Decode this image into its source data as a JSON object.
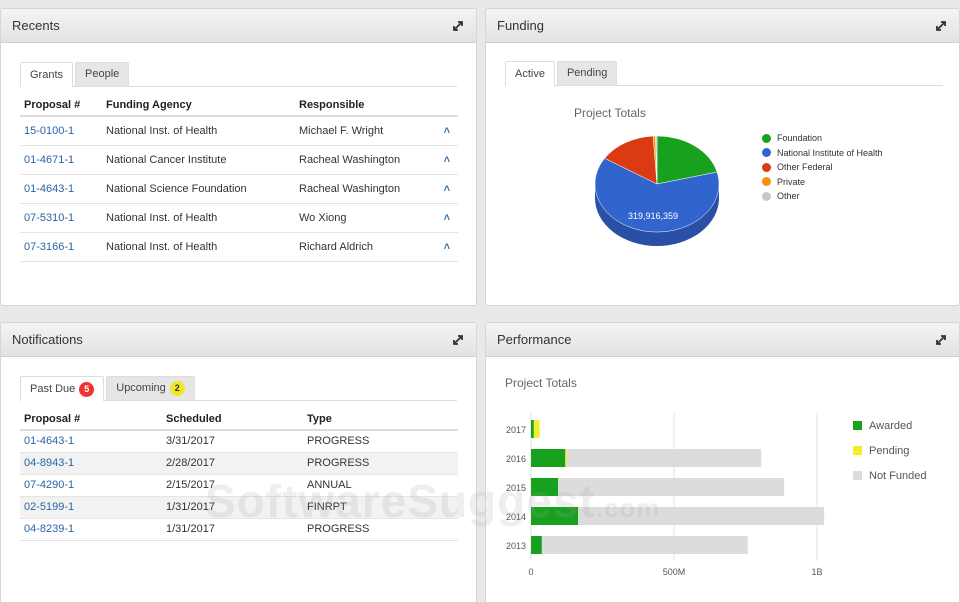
{
  "recents": {
    "title": "Recents",
    "tabs": [
      {
        "label": "Grants"
      },
      {
        "label": "People"
      }
    ],
    "headers": [
      "Proposal #",
      "Funding Agency",
      "Responsible"
    ],
    "rows": [
      {
        "proposal": "15-0100-1",
        "agency": "National Inst. of Health",
        "responsible": "Michael F. Wright"
      },
      {
        "proposal": "01-4671-1",
        "agency": "National Cancer Institute",
        "responsible": "Racheal Washington"
      },
      {
        "proposal": "01-4643-1",
        "agency": "National Science Foundation",
        "responsible": "Racheal Washington"
      },
      {
        "proposal": "07-5310-1",
        "agency": "National Inst. of Health",
        "responsible": "Wo Xiong"
      },
      {
        "proposal": "07-3166-1",
        "agency": "National Inst. of Health",
        "responsible": "Richard Aldrich"
      }
    ]
  },
  "funding": {
    "title": "Funding",
    "tabs": [
      {
        "label": "Active"
      },
      {
        "label": "Pending"
      }
    ],
    "chart_title": "Project Totals",
    "pie_label": "319,916,359",
    "legend": [
      {
        "label": "Foundation",
        "color": "#18a11f"
      },
      {
        "label": "National Institute of Health",
        "color": "#3165cd"
      },
      {
        "label": "Other Federal",
        "color": "#db3a12"
      },
      {
        "label": "Private",
        "color": "#f3920d"
      },
      {
        "label": "Other",
        "color": "#c8c8c8"
      }
    ]
  },
  "notifications": {
    "title": "Notifications",
    "tabs": [
      {
        "label": "Past Due",
        "count": "5"
      },
      {
        "label": "Upcoming",
        "count": "2"
      }
    ],
    "headers": [
      "Proposal #",
      "Scheduled",
      "Type"
    ],
    "rows": [
      {
        "proposal": "01-4643-1",
        "scheduled": "3/31/2017",
        "type": "PROGRESS"
      },
      {
        "proposal": "04-8943-1",
        "scheduled": "2/28/2017",
        "type": "PROGRESS"
      },
      {
        "proposal": "07-4290-1",
        "scheduled": "2/15/2017",
        "type": "ANNUAL"
      },
      {
        "proposal": "02-5199-1",
        "scheduled": "1/31/2017",
        "type": "FINRPT"
      },
      {
        "proposal": "04-8239-1",
        "scheduled": "1/31/2017",
        "type": "PROGRESS"
      }
    ]
  },
  "performance": {
    "title": "Performance",
    "chart_title": "Project Totals",
    "legend": [
      {
        "label": "Awarded",
        "color": "#18a11f"
      },
      {
        "label": "Pending",
        "color": "#f1ee2d"
      },
      {
        "label": "Not Funded",
        "color": "#dcdcdc"
      }
    ]
  },
  "watermark": {
    "main": "SoftwareSuggest",
    "suffix": ".com"
  },
  "chart_data": [
    {
      "type": "pie",
      "title": "Project Totals",
      "categories": [
        "Foundation",
        "National Institute of Health",
        "Other Federal",
        "Private",
        "Other"
      ],
      "values": [
        21,
        63,
        15,
        0.6,
        0.4
      ],
      "data_labels": [
        "319,916,359"
      ]
    },
    {
      "type": "bar",
      "orientation": "horizontal",
      "stacked": true,
      "title": "Project Totals",
      "categories": [
        "2017",
        "2016",
        "2015",
        "2014",
        "2013"
      ],
      "series": [
        {
          "name": "Awarded",
          "values": [
            10000000,
            120000000,
            95000000,
            165000000,
            38000000
          ]
        },
        {
          "name": "Pending",
          "values": [
            20000000,
            5000000,
            0,
            0,
            0
          ]
        },
        {
          "name": "Not Funded",
          "values": [
            0,
            680000000,
            790000000,
            860000000,
            720000000
          ]
        }
      ],
      "x_ticks": [
        "0",
        "500M",
        "1B"
      ],
      "xlim": [
        0,
        1000000000
      ]
    }
  ]
}
